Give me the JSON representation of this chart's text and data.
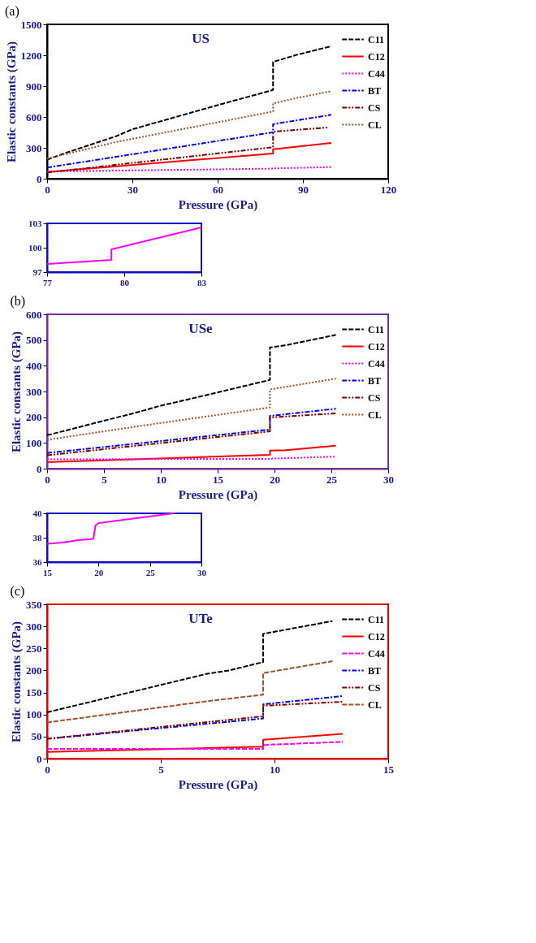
{
  "chart_data": [
    {
      "type": "line",
      "title": "(a)",
      "xlabel": "Pressure (GPa)",
      "ylabel": "Elastic constants (GPa)",
      "annotations": [
        "US"
      ],
      "xlim": [
        0,
        120
      ],
      "ylim": [
        0,
        1500
      ],
      "xticks": [
        0,
        30,
        60,
        90,
        120
      ],
      "yticks": [
        0,
        300,
        600,
        900,
        1200,
        1500
      ],
      "grid": false,
      "legend": "top right",
      "marker": "none",
      "series": [
        {
          "name": "C11",
          "color": "#000000",
          "line_style": "dashed",
          "x": [
            0,
            7,
            24,
            30,
            60,
            79.5,
            79.5,
            88,
            100
          ],
          "values": [
            185,
            255,
            410,
            480,
            715,
            862,
            1135,
            1205,
            1288
          ]
        },
        {
          "name": "C12",
          "color": "#ff0000",
          "line_style": "solid",
          "x": [
            0,
            79.5,
            79.5,
            100
          ],
          "values": [
            65,
            245,
            287,
            347
          ]
        },
        {
          "name": "C44",
          "color": "#ff00ff",
          "line_style": "dotted",
          "x": [
            0,
            79.5,
            79.5,
            100
          ],
          "values": [
            70,
            98,
            100,
            113
          ]
        },
        {
          "name": "BT",
          "color": "#0000ff",
          "line_style": "dashdot",
          "x": [
            0,
            79.5,
            79.5,
            100
          ],
          "values": [
            108,
            451,
            530,
            621
          ]
        },
        {
          "name": "CS",
          "color": "#800000",
          "line_style": "dashdotdot",
          "x": [
            0,
            79.5,
            79.5,
            88,
            99
          ],
          "values": [
            60,
            306,
            456,
            475,
            498
          ]
        },
        {
          "name": "CL",
          "color": "#a0522d",
          "line_style": "dotted",
          "x": [
            0,
            24,
            79.5,
            79.5,
            88,
            100
          ],
          "values": [
            195,
            355,
            653,
            732,
            785,
            851
          ]
        }
      ]
    },
    {
      "type": "line",
      "xlim": [
        77,
        83
      ],
      "ylim": [
        97,
        103
      ],
      "xticks": [
        77,
        80,
        83
      ],
      "yticks": [
        97,
        100,
        103
      ],
      "grid": false,
      "legend": false,
      "marker": "none",
      "series": [
        {
          "color": "#ff00ff",
          "line_style": "solid",
          "x": [
            77,
            79.5,
            79.5,
            83
          ],
          "values": [
            98,
            98.5,
            99.8,
            102.5
          ]
        }
      ]
    },
    {
      "type": "line",
      "title": "(b)",
      "xlabel": "Pressure (GPa)",
      "ylabel": "Elastic constants (GPa)",
      "annotations": [
        "USe"
      ],
      "xlim": [
        0,
        30
      ],
      "ylim": [
        0,
        600
      ],
      "xticks": [
        0,
        5,
        10,
        15,
        20,
        25,
        30
      ],
      "yticks": [
        0,
        100,
        200,
        300,
        400,
        500,
        600
      ],
      "grid": false,
      "legend": "top right",
      "marker": "none",
      "series": [
        {
          "name": "C11",
          "color": "#000000",
          "line_style": "dashed",
          "x": [
            0,
            8,
            10,
            12,
            19.6,
            19.6,
            21,
            25.4
          ],
          "values": [
            130,
            220,
            245,
            265,
            345,
            471,
            480,
            520
          ]
        },
        {
          "name": "C12",
          "color": "#ff0000",
          "line_style": "solid",
          "x": [
            0,
            19.6,
            19.6,
            21,
            25.4
          ],
          "values": [
            25,
            54,
            70,
            72,
            89
          ]
        },
        {
          "name": "C44",
          "color": "#ff00ff",
          "line_style": "dotted",
          "x": [
            0,
            15,
            19.6,
            19.7,
            25.4
          ],
          "values": [
            36,
            38,
            38,
            39,
            47
          ]
        },
        {
          "name": "BT",
          "color": "#0000ff",
          "line_style": "dashdot",
          "x": [
            0,
            19.6,
            19.6,
            25.4
          ],
          "values": [
            61,
            152,
            205,
            233
          ]
        },
        {
          "name": "CS",
          "color": "#800000",
          "line_style": "dashdotdot",
          "x": [
            0,
            19.6,
            19.6,
            25.4
          ],
          "values": [
            52,
            145,
            199,
            215
          ]
        },
        {
          "name": "CL",
          "color": "#a0522d",
          "line_style": "dotted",
          "x": [
            0,
            8,
            19.6,
            19.6,
            25.4
          ],
          "values": [
            112,
            165,
            238,
            308,
            350
          ]
        }
      ]
    },
    {
      "type": "line",
      "xlim": [
        15,
        30
      ],
      "ylim": [
        36,
        40
      ],
      "xticks": [
        15,
        20,
        25,
        30
      ],
      "yticks": [
        36,
        38,
        40
      ],
      "grid": false,
      "legend": false,
      "marker": "none",
      "series": [
        {
          "color": "#ff00ff",
          "line_style": "solid",
          "x": [
            15,
            16.5,
            17.3,
            18,
            19.5,
            19.7,
            20,
            27.3
          ],
          "values": [
            37.5,
            37.6,
            37.7,
            37.8,
            37.9,
            39,
            39.2,
            40
          ]
        }
      ]
    },
    {
      "type": "line",
      "title": "(c)",
      "xlabel": "Pressure (GPa)",
      "ylabel": "Elastic constants (GPa)",
      "annotations": [
        "UTe"
      ],
      "xlim": [
        0,
        15
      ],
      "ylim": [
        0,
        350
      ],
      "xticks": [
        0,
        5,
        10,
        15
      ],
      "yticks": [
        0,
        50,
        100,
        150,
        200,
        250,
        300,
        350
      ],
      "grid": false,
      "legend": "top right",
      "marker": "none",
      "series": [
        {
          "name": "C11",
          "color": "#000000",
          "line_style": "dashed",
          "x": [
            0,
            7,
            8,
            9.5,
            9.5,
            12.55
          ],
          "values": [
            105,
            192,
            200,
            219,
            283,
            312
          ]
        },
        {
          "name": "C12",
          "color": "#ff0000",
          "line_style": "solid",
          "x": [
            0,
            9.5,
            9.5,
            13
          ],
          "values": [
            15,
            27,
            43,
            56
          ]
        },
        {
          "name": "C44",
          "color": "#ff00ff",
          "line_style": "dashed",
          "x": [
            0,
            9.5,
            9.5,
            13
          ],
          "values": [
            22,
            22,
            31,
            38
          ]
        },
        {
          "name": "BT",
          "color": "#0000ff",
          "line_style": "dashdot",
          "x": [
            0,
            9.5,
            9.5,
            13
          ],
          "values": [
            45,
            91,
            123,
            142
          ]
        },
        {
          "name": "CS",
          "color": "#800000",
          "line_style": "dashdotdot",
          "x": [
            0,
            9.5,
            9.5,
            13
          ],
          "values": [
            45,
            96,
            120,
            129
          ]
        },
        {
          "name": "CL",
          "color": "#a0522d",
          "line_style": "dashed",
          "x": [
            0,
            7,
            9.5,
            9.5,
            12.55
          ],
          "values": [
            82,
            130,
            145,
            194,
            221
          ]
        }
      ]
    }
  ]
}
